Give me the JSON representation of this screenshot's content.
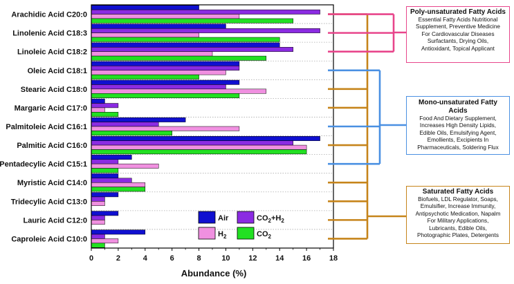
{
  "chart_data": {
    "type": "bar",
    "orientation": "horizontal",
    "xlabel": "Abundance (%)",
    "xlim": [
      0,
      18
    ],
    "xticks": [
      "0",
      "2",
      "4",
      "6",
      "8",
      "10",
      "12",
      "14",
      "16",
      "18"
    ],
    "categories": [
      "Arachidic Acid C20:0",
      "Linolenic Acid C18:3",
      "Linoleic Acid C18:2",
      "Oleic Acid C18:1",
      "Stearic Acid C18:0",
      "Margaric Acid C17:0",
      "Palmitoleic Acid C16:1",
      "Palmitic Acid C16:0",
      "Pentadecylic Acid C15:1",
      "Myristic Acid C14:0",
      "Tridecylic Acid C13:0",
      "Lauric Acid C12:0",
      "Caproleic Acid C10:0"
    ],
    "series": [
      {
        "name": "Air",
        "color": "#1010d0",
        "values": [
          8,
          10,
          14,
          11,
          11,
          1,
          7,
          17,
          3,
          2,
          2,
          2,
          4
        ]
      },
      {
        "name": "CO2+H2",
        "color": "#8b2be2",
        "values": [
          17,
          17,
          15,
          11,
          10,
          2,
          5,
          15,
          2,
          3,
          1,
          1,
          1
        ]
      },
      {
        "name": "H2",
        "color": "#f090e0",
        "values": [
          11,
          8,
          9,
          10,
          13,
          1,
          11,
          16,
          5,
          4,
          1,
          1,
          2
        ]
      },
      {
        "name": "CO2",
        "color": "#22e022",
        "values": [
          15,
          14,
          13,
          8,
          11,
          2,
          6,
          16,
          2,
          4,
          0,
          0,
          1
        ]
      }
    ],
    "legend": {
      "position": "bottom-center-inside",
      "labels": {
        "air": "Air",
        "co2h2_main": "CO",
        "co2h2_sub": "2",
        "co2h2_tail": "+H",
        "co2h2_sub2": "2",
        "h2_main": "H",
        "h2_sub": "2",
        "co2_main": "CO",
        "co2_sub": "2"
      }
    },
    "groups": [
      {
        "name": "poly",
        "color": "#e8458b",
        "members": [
          0,
          1,
          2
        ]
      },
      {
        "name": "mono",
        "color": "#4a90e2",
        "members": [
          3,
          6,
          8
        ]
      },
      {
        "name": "saturated",
        "color": "#c6841a",
        "members": [
          0,
          4,
          5,
          7,
          9,
          10,
          11,
          12
        ]
      }
    ]
  },
  "annotations": {
    "poly": {
      "title": "Poly-unsaturated Fatty Acids",
      "lines": [
        "Essential Fatty Acids Nutritional",
        "Supplement, Preventive Medicine",
        "For Cardiovascular Diseases",
        "Surfactants, Drying Oils,",
        "Antioxidant, Topical Applicant"
      ]
    },
    "mono": {
      "title": "Mono-unsaturated Fatty Acids",
      "lines": [
        "Food And Dietary Supplement,",
        "Increases High Density Lipids,",
        "Edible Oils, Emulsifying Agent,",
        "Emollients, Excipients In",
        "Pharmaceuticals, Soldering Flux"
      ]
    },
    "saturated": {
      "title": "Saturated Fatty Acids",
      "lines": [
        "Biofuels, LDL Regulator, Soaps,",
        "Emulsifier, Increase Immunity,",
        "Antipsychotic Medication, Napalm",
        "For Military Applications,",
        "Lubricants, Edible Oils,",
        "Photographic Plates, Detergents"
      ]
    }
  }
}
